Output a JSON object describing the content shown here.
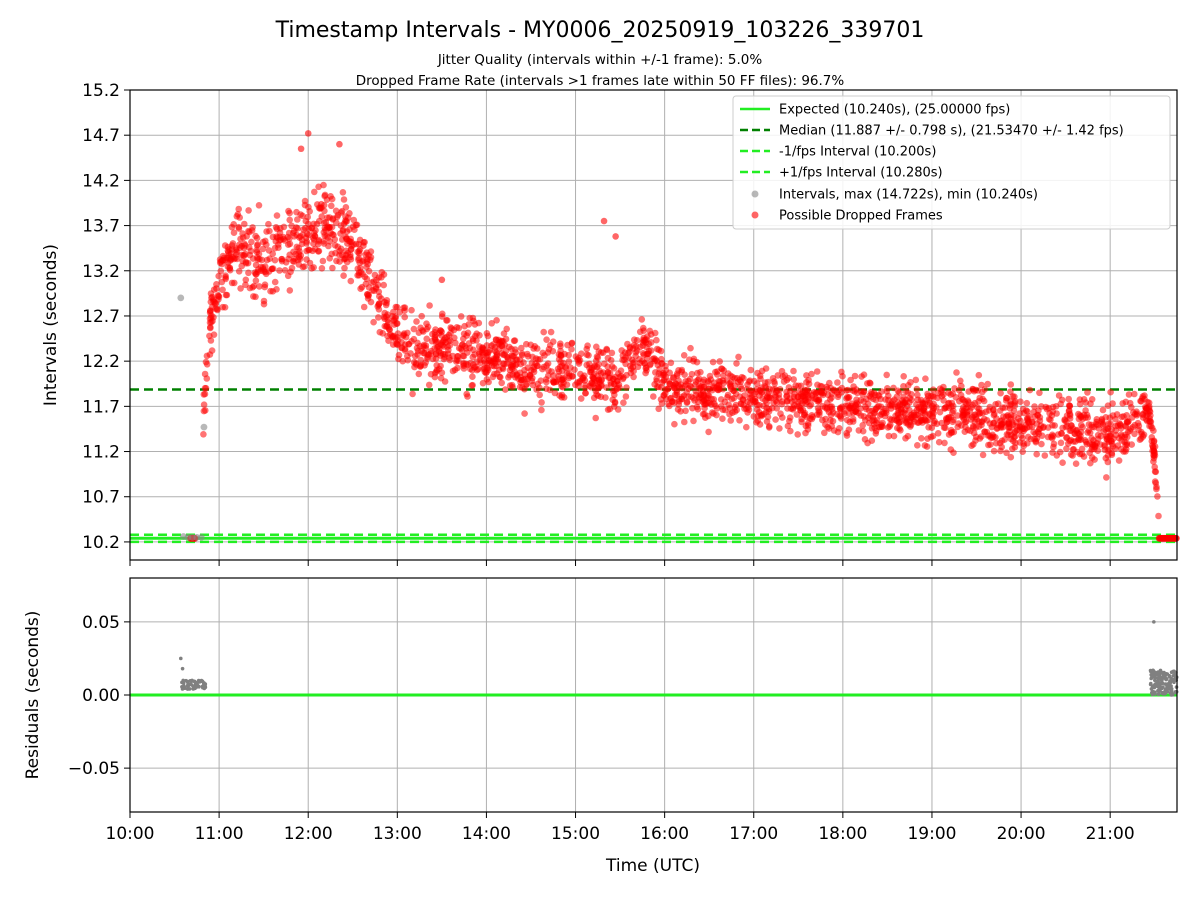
{
  "chart_data": [
    {
      "type": "scatter",
      "title": "Timestamp Intervals - MY0006_20250919_103226_339701",
      "subtitle_lines": [
        "Jitter Quality (intervals within +/-1 frame): 5.0%",
        "Dropped Frame Rate (intervals >1 frames late within 50 FF files): 96.7%"
      ],
      "xlabel": "",
      "ylabel": "Intervals (seconds)",
      "xlim_hours": [
        10.0,
        21.75
      ],
      "ylim": [
        10.0,
        15.2
      ],
      "yticks": [
        10.2,
        10.7,
        11.2,
        11.7,
        12.2,
        12.7,
        13.2,
        13.7,
        14.2,
        14.7,
        15.2
      ],
      "ytick_labels": [
        "10.2",
        "10.7",
        "11.2",
        "11.7",
        "12.2",
        "12.7",
        "13.2",
        "13.7",
        "14.2",
        "14.7",
        "15.2"
      ],
      "grid": true,
      "legend_position": "top-right",
      "legend": [
        "Expected (10.240s), (25.00000 fps)",
        "Median (11.887 +/- 0.798 s), (21.53470 +/- 1.42 fps)",
        "-1/fps Interval (10.200s)",
        "+1/fps Interval (10.280s)",
        "Intervals, max (14.722s), min (10.240s)",
        "Possible Dropped Frames"
      ],
      "reference_lines": [
        {
          "name": "Expected",
          "y": 10.24,
          "color": "#22ee22",
          "style": "solid"
        },
        {
          "name": "Median",
          "y": 11.887,
          "color": "#008000",
          "style": "dashed"
        },
        {
          "name": "-1/fps Interval",
          "y": 10.2,
          "color": "#22ee22",
          "style": "dashed"
        },
        {
          "name": "+1/fps Interval",
          "y": 10.28,
          "color": "#22ee22",
          "style": "dashed"
        }
      ],
      "series": [
        {
          "name": "Possible Dropped Frames",
          "color": "#ff0000",
          "trend_hours": [
            10.82,
            10.9,
            11.0,
            11.2,
            11.4,
            11.6,
            11.8,
            12.0,
            12.2,
            12.4,
            12.6,
            12.8,
            13.0,
            13.2,
            13.5,
            14.0,
            14.5,
            15.0,
            15.5,
            15.75,
            16.0,
            16.5,
            17.0,
            17.5,
            18.0,
            18.5,
            19.0,
            19.5,
            20.0,
            20.5,
            21.0,
            21.3,
            21.45,
            21.5,
            21.55
          ],
          "trend_values": [
            11.6,
            12.6,
            13.1,
            13.5,
            13.3,
            13.4,
            13.5,
            13.6,
            13.7,
            13.6,
            13.3,
            12.9,
            12.6,
            12.3,
            12.35,
            12.3,
            12.1,
            12.1,
            11.95,
            12.4,
            11.95,
            11.85,
            11.8,
            11.75,
            11.7,
            11.65,
            11.65,
            11.6,
            11.55,
            11.45,
            11.4,
            11.6,
            11.6,
            11.1,
            10.4
          ],
          "spread": 0.35,
          "count": 2600,
          "flat_segments": [
            {
              "x": [
                10.68,
                10.74
              ],
              "y": 10.24
            },
            {
              "x": [
                21.55,
                21.75
              ],
              "y": 10.24
            }
          ]
        },
        {
          "name": "Intervals",
          "color": "#888888",
          "points": [
            {
              "x": 10.57,
              "y": 12.9
            },
            {
              "x": 10.83,
              "y": 11.47
            },
            {
              "x": 10.6,
              "y": 10.26
            },
            {
              "x": 10.65,
              "y": 10.25
            },
            {
              "x": 10.7,
              "y": 10.25
            },
            {
              "x": 10.75,
              "y": 10.25
            },
            {
              "x": 10.8,
              "y": 10.25
            }
          ]
        }
      ]
    },
    {
      "type": "scatter",
      "xlabel": "Time (UTC)",
      "ylabel": "Residuals (seconds)",
      "xlim_hours": [
        10.0,
        21.75
      ],
      "ylim": [
        -0.08,
        0.08
      ],
      "yticks": [
        0.05,
        0.0,
        -0.05
      ],
      "ytick_labels": [
        "0.05",
        "0.00",
        "−0.05"
      ],
      "xticks_hours": [
        10,
        11,
        12,
        13,
        14,
        15,
        16,
        17,
        18,
        19,
        20,
        21
      ],
      "xtick_labels": [
        "10:00",
        "11:00",
        "12:00",
        "13:00",
        "14:00",
        "15:00",
        "16:00",
        "17:00",
        "18:00",
        "19:00",
        "20:00",
        "21:00"
      ],
      "grid": true,
      "zero_line_color": "#22ee22",
      "series": [
        {
          "name": "Residuals",
          "color": "#808080",
          "points": [
            {
              "x": 10.57,
              "y": 0.025
            },
            {
              "x": 10.59,
              "y": 0.018
            },
            {
              "x": 21.49,
              "y": 0.05
            }
          ],
          "clusters": [
            {
              "x": [
                10.57,
                10.85
              ],
              "y_min": 0.004,
              "y_max": 0.01,
              "count": 60
            },
            {
              "x": [
                21.45,
                21.75
              ],
              "y_min": 0.0,
              "y_max": 0.017,
              "count": 140
            }
          ]
        }
      ]
    }
  ]
}
